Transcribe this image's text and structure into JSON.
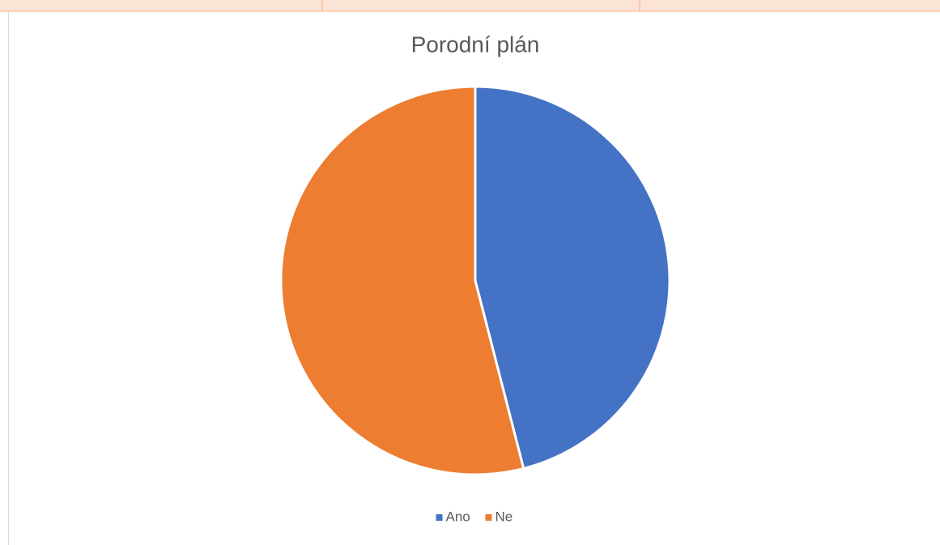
{
  "chart_data": {
    "type": "pie",
    "title": "Porodní plán",
    "categories": [
      "Ano",
      "Ne"
    ],
    "values": [
      46,
      54
    ],
    "colors": [
      "#4472c4",
      "#ed7d31"
    ],
    "legend": "bottom"
  }
}
